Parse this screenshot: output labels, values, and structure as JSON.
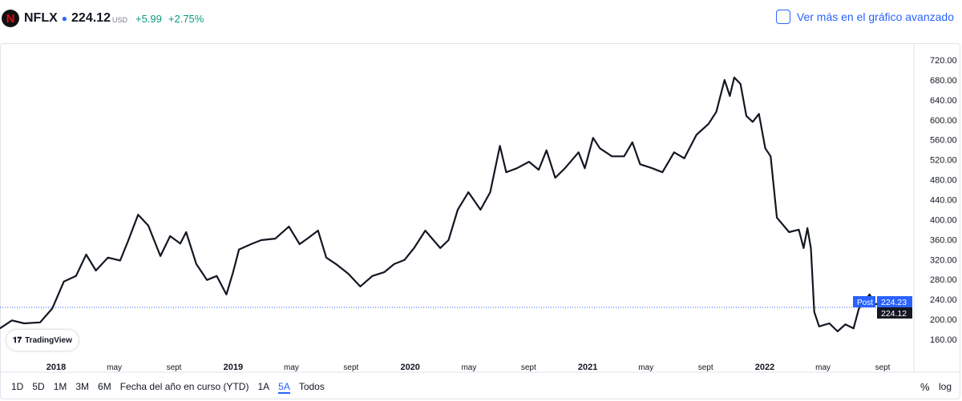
{
  "header": {
    "symbol": "NFLX",
    "price": "224.12",
    "currency": "USD",
    "change": "+5.99",
    "change_pct": "+2.75%",
    "advanced_link": "Ver más en el gráfico avanzado"
  },
  "watermark": "TradingView",
  "ranges": [
    {
      "label": "1D"
    },
    {
      "label": "5D"
    },
    {
      "label": "1M"
    },
    {
      "label": "3M"
    },
    {
      "label": "6M"
    },
    {
      "label": "Fecha del año en curso (YTD)"
    },
    {
      "label": "1A"
    },
    {
      "label": "5A",
      "active": true
    },
    {
      "label": "Todos"
    }
  ],
  "scale_buttons": {
    "percent": "%",
    "log": "log"
  },
  "colors": {
    "line": "#131722",
    "accent": "#2962ff",
    "positive": "#089981"
  },
  "chart_data": {
    "type": "line",
    "title": "",
    "xlabel": "",
    "ylabel": "",
    "ylim": [
      140,
      740
    ],
    "y_ticks": [
      "160.00",
      "200.00",
      "240.00",
      "280.00",
      "320.00",
      "360.00",
      "400.00",
      "440.00",
      "480.00",
      "520.00",
      "560.00",
      "600.00",
      "640.00",
      "680.00",
      "720.00"
    ],
    "x_ticks": [
      {
        "label": "2018",
        "date": "2018-01-01",
        "major": true
      },
      {
        "label": "may",
        "date": "2018-05-01"
      },
      {
        "label": "sept",
        "date": "2018-09-01"
      },
      {
        "label": "2019",
        "date": "2019-01-01",
        "major": true
      },
      {
        "label": "may",
        "date": "2019-05-01"
      },
      {
        "label": "sept",
        "date": "2019-09-01"
      },
      {
        "label": "2020",
        "date": "2020-01-01",
        "major": true
      },
      {
        "label": "may",
        "date": "2020-05-01"
      },
      {
        "label": "sept",
        "date": "2020-09-01"
      },
      {
        "label": "2021",
        "date": "2021-01-01",
        "major": true
      },
      {
        "label": "may",
        "date": "2021-05-01"
      },
      {
        "label": "sept",
        "date": "2021-09-01"
      },
      {
        "label": "2022",
        "date": "2022-01-01",
        "major": true
      },
      {
        "label": "may",
        "date": "2022-05-01"
      },
      {
        "label": "sept",
        "date": "2022-09-01"
      }
    ],
    "last_price": {
      "label": "224.12",
      "value": 224.12
    },
    "post_price": {
      "tag": "Post",
      "label": "224.23",
      "value": 224.23
    },
    "points": [
      [
        "2017-09-07",
        182
      ],
      [
        "2017-10-02",
        198
      ],
      [
        "2017-10-27",
        192
      ],
      [
        "2017-11-29",
        194
      ],
      [
        "2017-12-24",
        222
      ],
      [
        "2018-01-17",
        276
      ],
      [
        "2018-02-11",
        287
      ],
      [
        "2018-03-04",
        330
      ],
      [
        "2018-03-24",
        298
      ],
      [
        "2018-04-18",
        324
      ],
      [
        "2018-05-13",
        318
      ],
      [
        "2018-05-30",
        359
      ],
      [
        "2018-06-19",
        410
      ],
      [
        "2018-07-10",
        388
      ],
      [
        "2018-08-04",
        327
      ],
      [
        "2018-08-24",
        367
      ],
      [
        "2018-09-14",
        352
      ],
      [
        "2018-09-26",
        375
      ],
      [
        "2018-10-17",
        311
      ],
      [
        "2018-11-08",
        279
      ],
      [
        "2018-11-28",
        287
      ],
      [
        "2018-12-18",
        250
      ],
      [
        "2019-01-01",
        295
      ],
      [
        "2019-01-13",
        340
      ],
      [
        "2019-02-07",
        351
      ],
      [
        "2019-02-28",
        359
      ],
      [
        "2019-03-29",
        362
      ],
      [
        "2019-04-26",
        386
      ],
      [
        "2019-05-18",
        351
      ],
      [
        "2019-06-03",
        362
      ],
      [
        "2019-06-25",
        378
      ],
      [
        "2019-07-12",
        324
      ],
      [
        "2019-08-01",
        311
      ],
      [
        "2019-08-26",
        292
      ],
      [
        "2019-09-20",
        266
      ],
      [
        "2019-10-15",
        287
      ],
      [
        "2019-11-09",
        295
      ],
      [
        "2019-11-29",
        311
      ],
      [
        "2019-12-20",
        319
      ],
      [
        "2020-01-09",
        343
      ],
      [
        "2020-02-01",
        378
      ],
      [
        "2020-03-03",
        343
      ],
      [
        "2020-03-20",
        359
      ],
      [
        "2020-04-08",
        420
      ],
      [
        "2020-04-30",
        455
      ],
      [
        "2020-05-25",
        420
      ],
      [
        "2020-06-14",
        455
      ],
      [
        "2020-07-04",
        548
      ],
      [
        "2020-07-17",
        495
      ],
      [
        "2020-08-08",
        503
      ],
      [
        "2020-09-02",
        516
      ],
      [
        "2020-09-22",
        500
      ],
      [
        "2020-10-08",
        539
      ],
      [
        "2020-10-26",
        484
      ],
      [
        "2020-11-15",
        503
      ],
      [
        "2020-12-13",
        535
      ],
      [
        "2020-12-26",
        503
      ],
      [
        "2021-01-12",
        564
      ],
      [
        "2021-01-26",
        543
      ],
      [
        "2021-02-20",
        527
      ],
      [
        "2021-03-17",
        527
      ],
      [
        "2021-04-03",
        555
      ],
      [
        "2021-04-19",
        511
      ],
      [
        "2021-05-14",
        503
      ],
      [
        "2021-06-04",
        495
      ],
      [
        "2021-06-28",
        535
      ],
      [
        "2021-07-19",
        523
      ],
      [
        "2021-08-13",
        570
      ],
      [
        "2021-09-07",
        592
      ],
      [
        "2021-09-23",
        616
      ],
      [
        "2021-10-10",
        680
      ],
      [
        "2021-10-21",
        648
      ],
      [
        "2021-10-30",
        685
      ],
      [
        "2021-11-12",
        672
      ],
      [
        "2021-11-24",
        608
      ],
      [
        "2021-12-07",
        596
      ],
      [
        "2021-12-20",
        612
      ],
      [
        "2022-01-02",
        543
      ],
      [
        "2022-01-13",
        527
      ],
      [
        "2022-01-26",
        404
      ],
      [
        "2022-02-20",
        375
      ],
      [
        "2022-03-12",
        380
      ],
      [
        "2022-03-22",
        343
      ],
      [
        "2022-03-30",
        383
      ],
      [
        "2022-04-06",
        343
      ],
      [
        "2022-04-13",
        215
      ],
      [
        "2022-04-23",
        186
      ],
      [
        "2022-05-14",
        192
      ],
      [
        "2022-05-31",
        176
      ],
      [
        "2022-06-16",
        190
      ],
      [
        "2022-07-03",
        182
      ],
      [
        "2022-07-14",
        222
      ],
      [
        "2022-08-05",
        250
      ],
      [
        "2022-08-17",
        230
      ],
      [
        "2022-08-30",
        235
      ],
      [
        "2022-09-07",
        224
      ]
    ]
  }
}
